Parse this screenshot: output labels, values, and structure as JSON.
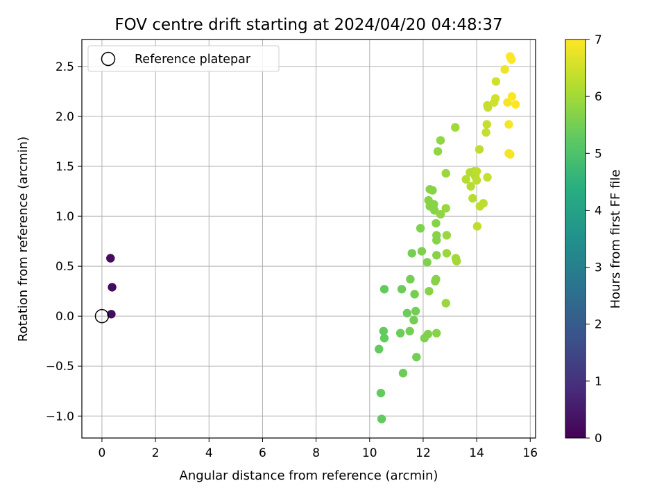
{
  "chart_data": {
    "type": "scatter",
    "title": "FOV centre drift starting at 2024/04/20 04:48:37",
    "xlabel": "Angular distance from reference (arcmin)",
    "ylabel": "Rotation from reference (arcmin)",
    "colorbar_label": "Hours from first FF file",
    "xlim": [
      -0.75,
      16.2
    ],
    "ylim": [
      -1.22,
      2.77
    ],
    "clim": [
      0,
      7
    ],
    "x_ticks": [
      0,
      2,
      4,
      6,
      8,
      10,
      12,
      14,
      16
    ],
    "y_ticks": [
      -1.0,
      -0.5,
      0.0,
      0.5,
      1.0,
      1.5,
      2.0,
      2.5
    ],
    "colorbar_ticks": [
      0,
      1,
      2,
      3,
      4,
      5,
      6,
      7
    ],
    "colormap": "viridis",
    "grid": true,
    "legend": {
      "placement": "top-left",
      "entries": [
        {
          "label": "Reference platepar",
          "marker": "open-circle"
        }
      ]
    },
    "reference_point": {
      "x": 0.0,
      "y": 0.0
    },
    "points": [
      {
        "x": 0.32,
        "y": 0.58,
        "c": 0.2
      },
      {
        "x": 0.38,
        "y": 0.29,
        "c": 0.2
      },
      {
        "x": 0.35,
        "y": 0.02,
        "c": 0.2
      },
      {
        "x": 10.35,
        "y": -0.33,
        "c": 5.3
      },
      {
        "x": 10.42,
        "y": -0.77,
        "c": 5.3
      },
      {
        "x": 10.45,
        "y": -1.03,
        "c": 5.3
      },
      {
        "x": 10.52,
        "y": -0.15,
        "c": 5.3
      },
      {
        "x": 10.55,
        "y": -0.22,
        "c": 5.3
      },
      {
        "x": 10.55,
        "y": 0.27,
        "c": 5.3
      },
      {
        "x": 11.15,
        "y": -0.17,
        "c": 5.4
      },
      {
        "x": 11.2,
        "y": 0.27,
        "c": 5.4
      },
      {
        "x": 11.25,
        "y": -0.57,
        "c": 5.4
      },
      {
        "x": 11.4,
        "y": 0.03,
        "c": 5.4
      },
      {
        "x": 11.5,
        "y": -0.15,
        "c": 5.5
      },
      {
        "x": 11.52,
        "y": 0.37,
        "c": 5.5
      },
      {
        "x": 11.58,
        "y": 0.63,
        "c": 5.5
      },
      {
        "x": 11.65,
        "y": -0.04,
        "c": 5.5
      },
      {
        "x": 11.68,
        "y": 0.22,
        "c": 5.5
      },
      {
        "x": 11.72,
        "y": 0.05,
        "c": 5.5
      },
      {
        "x": 11.75,
        "y": -0.41,
        "c": 5.5
      },
      {
        "x": 11.9,
        "y": 0.88,
        "c": 5.6
      },
      {
        "x": 11.95,
        "y": 0.65,
        "c": 5.6
      },
      {
        "x": 12.05,
        "y": -0.22,
        "c": 5.6
      },
      {
        "x": 12.15,
        "y": 0.54,
        "c": 5.6
      },
      {
        "x": 12.18,
        "y": -0.18,
        "c": 5.6
      },
      {
        "x": 12.2,
        "y": 1.16,
        "c": 5.7
      },
      {
        "x": 12.22,
        "y": 0.25,
        "c": 5.7
      },
      {
        "x": 12.25,
        "y": 1.1,
        "c": 5.7
      },
      {
        "x": 12.25,
        "y": 1.27,
        "c": 5.7
      },
      {
        "x": 12.35,
        "y": 1.26,
        "c": 5.7
      },
      {
        "x": 12.4,
        "y": 1.12,
        "c": 5.7
      },
      {
        "x": 12.42,
        "y": 1.06,
        "c": 5.7
      },
      {
        "x": 12.45,
        "y": 0.35,
        "c": 5.7
      },
      {
        "x": 12.48,
        "y": 0.93,
        "c": 5.7
      },
      {
        "x": 12.48,
        "y": 0.37,
        "c": 5.7
      },
      {
        "x": 12.5,
        "y": 0.81,
        "c": 5.7
      },
      {
        "x": 12.5,
        "y": 0.76,
        "c": 5.7
      },
      {
        "x": 12.5,
        "y": 0.61,
        "c": 5.7
      },
      {
        "x": 12.5,
        "y": -0.17,
        "c": 5.7
      },
      {
        "x": 12.55,
        "y": 1.65,
        "c": 5.8
      },
      {
        "x": 12.65,
        "y": 1.76,
        "c": 5.8
      },
      {
        "x": 12.65,
        "y": 1.02,
        "c": 5.8
      },
      {
        "x": 12.85,
        "y": 1.43,
        "c": 5.9
      },
      {
        "x": 12.85,
        "y": 1.08,
        "c": 5.9
      },
      {
        "x": 12.88,
        "y": 0.81,
        "c": 5.9
      },
      {
        "x": 12.88,
        "y": 0.63,
        "c": 5.9
      },
      {
        "x": 12.85,
        "y": 0.13,
        "c": 5.9
      },
      {
        "x": 13.2,
        "y": 1.89,
        "c": 6.0
      },
      {
        "x": 13.22,
        "y": 0.58,
        "c": 6.0
      },
      {
        "x": 13.25,
        "y": 0.55,
        "c": 6.0
      },
      {
        "x": 13.6,
        "y": 1.37,
        "c": 6.2
      },
      {
        "x": 13.75,
        "y": 1.44,
        "c": 6.2
      },
      {
        "x": 13.78,
        "y": 1.3,
        "c": 6.2
      },
      {
        "x": 13.85,
        "y": 1.18,
        "c": 6.2
      },
      {
        "x": 13.9,
        "y": 1.45,
        "c": 6.2
      },
      {
        "x": 13.95,
        "y": 1.4,
        "c": 6.2
      },
      {
        "x": 14.0,
        "y": 1.36,
        "c": 6.3
      },
      {
        "x": 14.0,
        "y": 1.45,
        "c": 6.3
      },
      {
        "x": 14.02,
        "y": 0.9,
        "c": 6.3
      },
      {
        "x": 14.1,
        "y": 1.67,
        "c": 6.3
      },
      {
        "x": 14.12,
        "y": 1.1,
        "c": 6.3
      },
      {
        "x": 14.25,
        "y": 1.13,
        "c": 6.3
      },
      {
        "x": 14.35,
        "y": 1.84,
        "c": 6.4
      },
      {
        "x": 14.38,
        "y": 1.92,
        "c": 6.4
      },
      {
        "x": 14.4,
        "y": 1.39,
        "c": 6.4
      },
      {
        "x": 14.4,
        "y": 2.11,
        "c": 6.4
      },
      {
        "x": 14.42,
        "y": 2.09,
        "c": 6.4
      },
      {
        "x": 14.65,
        "y": 2.14,
        "c": 6.5
      },
      {
        "x": 14.7,
        "y": 2.18,
        "c": 6.5
      },
      {
        "x": 14.72,
        "y": 2.35,
        "c": 6.5
      },
      {
        "x": 15.05,
        "y": 2.47,
        "c": 6.8
      },
      {
        "x": 15.15,
        "y": 2.14,
        "c": 6.9
      },
      {
        "x": 15.2,
        "y": 1.92,
        "c": 6.9
      },
      {
        "x": 15.2,
        "y": 1.63,
        "c": 6.9
      },
      {
        "x": 15.25,
        "y": 1.62,
        "c": 6.9
      },
      {
        "x": 15.25,
        "y": 2.6,
        "c": 7.0
      },
      {
        "x": 15.3,
        "y": 2.57,
        "c": 7.0
      },
      {
        "x": 15.32,
        "y": 2.2,
        "c": 7.0
      },
      {
        "x": 15.45,
        "y": 2.12,
        "c": 7.0
      }
    ]
  }
}
